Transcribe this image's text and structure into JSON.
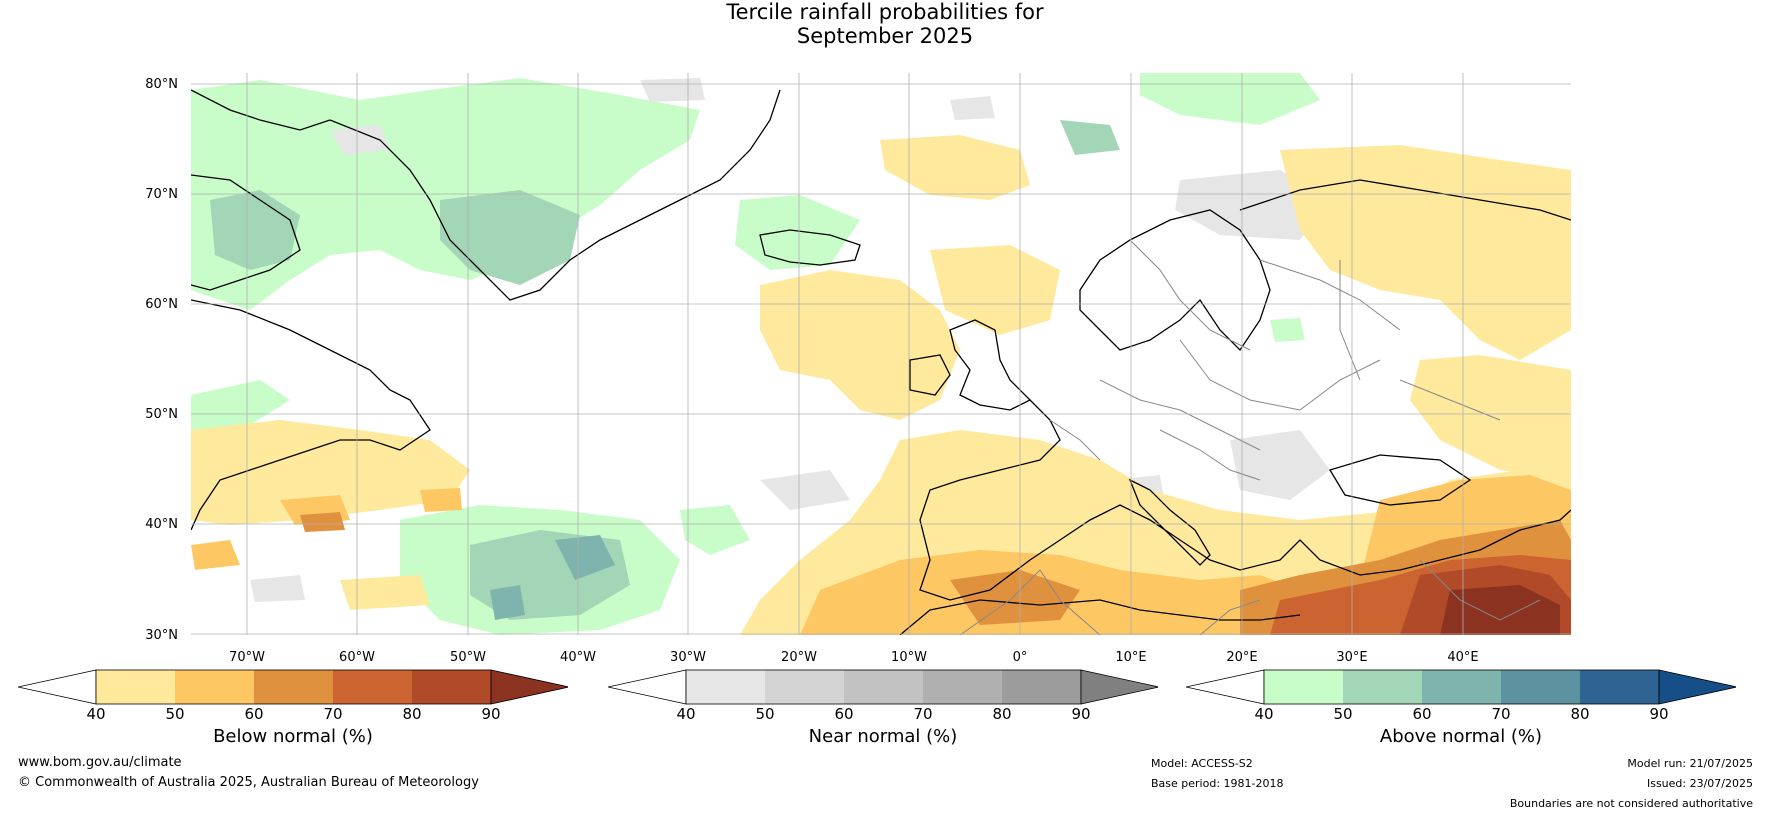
{
  "title": {
    "line1": "Tercile rainfall probabilities for",
    "line2": "September 2025"
  },
  "map": {
    "lat_labels": [
      "80°N",
      "70°N",
      "60°N",
      "50°N",
      "40°N",
      "30°N"
    ],
    "lon_labels": [
      "70°W",
      "60°W",
      "50°W",
      "40°W",
      "30°W",
      "20°W",
      "10°W",
      "0°",
      "10°E",
      "20°E",
      "30°E",
      "40°E"
    ],
    "gridline_color": "#b0b0b0",
    "coastline_color": "#000000",
    "border_color": "#888888"
  },
  "colorbars": [
    {
      "label": "Below normal (%)",
      "ticks": [
        "40",
        "50",
        "60",
        "70",
        "80",
        "90"
      ],
      "colors": [
        "#ffffff",
        "#fee99d",
        "#fdc863",
        "#e0913e",
        "#cb6430",
        "#b04a28",
        "#8b3220"
      ]
    },
    {
      "label": "Near normal (%)",
      "ticks": [
        "40",
        "50",
        "60",
        "70",
        "80",
        "90"
      ],
      "colors": [
        "#ffffff",
        "#e6e6e6",
        "#d4d4d4",
        "#c2c2c2",
        "#b0b0b0",
        "#9c9c9c",
        "#808080"
      ]
    },
    {
      "label": "Above normal (%)",
      "ticks": [
        "40",
        "50",
        "60",
        "70",
        "80",
        "90"
      ],
      "colors": [
        "#ffffff",
        "#c8fcc8",
        "#a3d6b7",
        "#7fb3ad",
        "#5d93a0",
        "#2f6391",
        "#164f87"
      ]
    }
  ],
  "footer": {
    "website": "www.bom.gov.au/climate",
    "copyright": "© Commonwealth of Australia 2025, Australian Bureau of Meteorology",
    "model": "Model: ACCESS-S2",
    "base_period": "Base period: 1981-2018",
    "model_run": "Model run: 21/07/2025",
    "issued": "Issued: 23/07/2025",
    "disclaimer": "Boundaries are not considered authoritative"
  }
}
